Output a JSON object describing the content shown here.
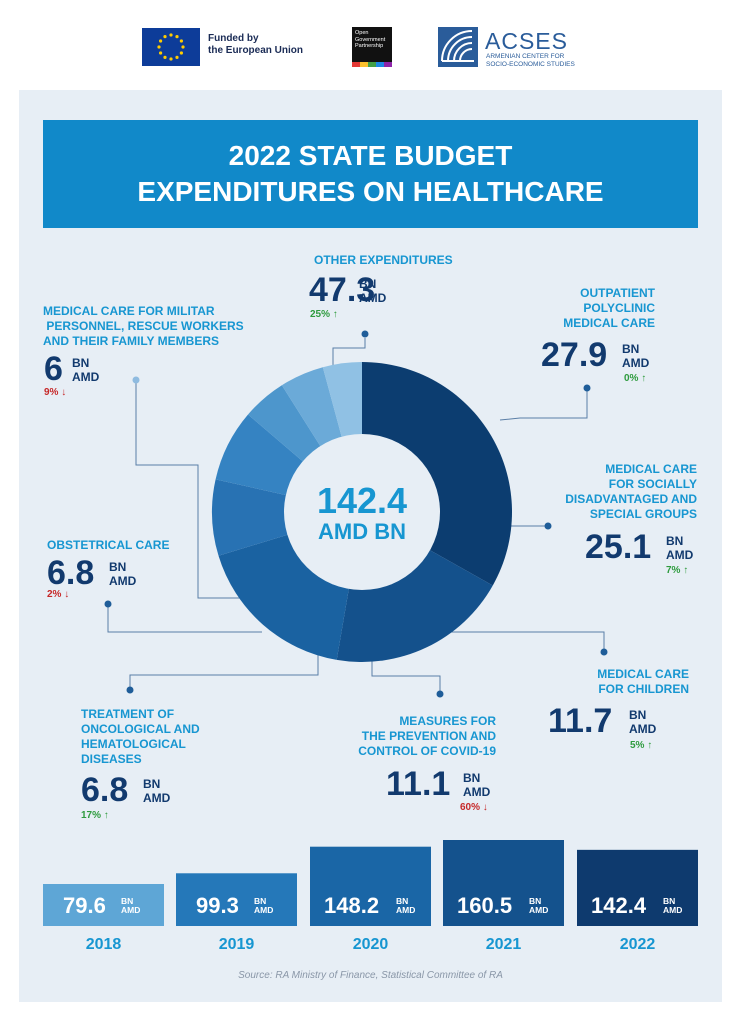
{
  "header": {
    "eu_text": [
      "Funded by",
      "the European Union"
    ],
    "ogp_text": [
      "Open",
      "Government",
      "Partnership"
    ],
    "acses_name": "ACSES",
    "acses_sub": [
      "ARMENIAN CENTER FOR",
      "SOCIO-ECONOMIC STUDIES"
    ]
  },
  "title": [
    "2022 STATE BUDGET",
    "EXPENDITURES ON HEALTHCARE"
  ],
  "center": {
    "value": "142.4",
    "unit": "AMD BN"
  },
  "unit_top": "BN",
  "unit_bottom": "AMD",
  "categories": [
    {
      "label": [
        "OTHER EXPENDITURES"
      ],
      "value": "47.3",
      "change": "25%",
      "dir": "up"
    },
    {
      "label": [
        "OUTPATIENT",
        "POLYCLINIC",
        "MEDICAL CARE"
      ],
      "value": "27.9",
      "change": "0%",
      "dir": "up"
    },
    {
      "label": [
        "MEDICAL CARE",
        "FOR SOCIALLY",
        "DISADVANTAGED AND",
        "SPECIAL GROUPS"
      ],
      "value": "25.1",
      "change": "7%",
      "dir": "up"
    },
    {
      "label": [
        "MEDICAL CARE",
        "FOR CHILDREN"
      ],
      "value": "11.7",
      "change": "5%",
      "dir": "up"
    },
    {
      "label": [
        "MEASURES FOR",
        "THE PREVENTION AND",
        "CONTROL OF COVID-19"
      ],
      "value": "11.1",
      "change": "60%",
      "dir": "down"
    },
    {
      "label": [
        "TREATMENT OF",
        "ONCOLOGICAL AND",
        "HEMATOLOGICAL",
        "DISEASES"
      ],
      "value": "6.8",
      "change": "17%",
      "dir": "up"
    },
    {
      "label": [
        "OBSTETRICAL CARE"
      ],
      "value": "6.8",
      "change": "2%",
      "dir": "down"
    },
    {
      "label": [
        "MEDICAL CARE FOR MILITAR",
        " PERSONNEL, RESCUE WORKERS",
        "AND THEIR FAMILY MEMBERS"
      ],
      "value": "6",
      "change": "9%",
      "dir": "down"
    }
  ],
  "years": [
    {
      "year": "2018",
      "value": "79.6"
    },
    {
      "year": "2019",
      "value": "99.3"
    },
    {
      "year": "2020",
      "value": "148.2"
    },
    {
      "year": "2021",
      "value": "160.5"
    },
    {
      "year": "2022",
      "value": "142.4"
    }
  ],
  "source": "Source: RA Ministry of Finance, Statistical Committee of RA",
  "chart_data": [
    {
      "type": "pie",
      "title": "2022 STATE BUDGET EXPENDITURES ON HEALTHCARE",
      "total": 142.4,
      "unit": "BN AMD",
      "categories": [
        "OTHER EXPENDITURES",
        "OUTPATIENT POLYCLINIC MEDICAL CARE",
        "MEDICAL CARE FOR SOCIALLY DISADVANTAGED AND SPECIAL GROUPS",
        "MEDICAL CARE FOR CHILDREN",
        "MEASURES FOR THE PREVENTION AND CONTROL OF COVID-19",
        "TREATMENT OF ONCOLOGICAL AND HEMATOLOGICAL DISEASES",
        "OBSTETRICAL CARE",
        "MEDICAL CARE FOR MILITAR PERSONNEL, RESCUE WORKERS AND THEIR FAMILY MEMBERS"
      ],
      "values": [
        47.3,
        27.9,
        25.1,
        11.7,
        11.1,
        6.8,
        6.8,
        6
      ],
      "changes": [
        "25%",
        "0%",
        "7%",
        "5%",
        "60%",
        "17%",
        "2%",
        "9%"
      ],
      "change_direction": [
        "up",
        "up",
        "up",
        "up",
        "down",
        "up",
        "down",
        "down"
      ],
      "colors": [
        "#0c3d70",
        "#14518c",
        "#1a62a1",
        "#2872b3",
        "#3583c2",
        "#4d96cc",
        "#6baad8",
        "#90c1e4"
      ]
    },
    {
      "type": "bar",
      "categories": [
        "2018",
        "2019",
        "2020",
        "2021",
        "2022"
      ],
      "values": [
        79.6,
        99.3,
        148.2,
        160.5,
        142.4
      ],
      "unit": "BN AMD",
      "colors": [
        "#5ea6d6",
        "#2578b9",
        "#1a66a6",
        "#14528d",
        "#0e3a6e"
      ]
    }
  ]
}
